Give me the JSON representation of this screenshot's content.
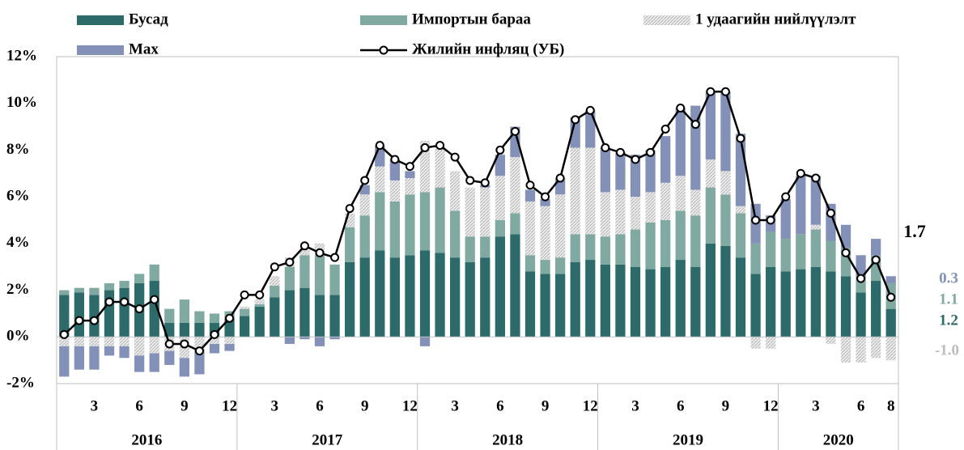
{
  "chart_data": {
    "type": "bar",
    "stacked": true,
    "categories": [
      null,
      null,
      "3",
      null,
      null,
      "6",
      null,
      null,
      "9",
      null,
      null,
      "12",
      null,
      null,
      "3",
      null,
      null,
      "6",
      null,
      null,
      "9",
      null,
      null,
      "12",
      null,
      null,
      "3",
      null,
      null,
      "6",
      null,
      null,
      "9",
      null,
      null,
      "12",
      null,
      null,
      "3",
      null,
      null,
      "6",
      null,
      null,
      "9",
      null,
      null,
      "12",
      null,
      null,
      "3",
      null,
      null,
      "6",
      null,
      "8"
    ],
    "years": [
      "2016",
      "2017",
      "2018",
      "2019",
      "2020"
    ],
    "ylim": [
      -2,
      12
    ],
    "yticks": [
      {
        "value": -2,
        "label": "-2%"
      },
      {
        "value": 0,
        "label": "0%"
      },
      {
        "value": 2,
        "label": "2%"
      },
      {
        "value": 4,
        "label": "4%"
      },
      {
        "value": 6,
        "label": "6%"
      },
      {
        "value": 8,
        "label": "8%"
      },
      {
        "value": 10,
        "label": "10%"
      },
      {
        "value": 12,
        "label": "12%"
      }
    ],
    "grid": false,
    "series": [
      {
        "name": "Бусад",
        "color": "#2d6a6a",
        "values": [
          1.8,
          1.9,
          1.8,
          2.0,
          2.1,
          2.3,
          2.4,
          0.6,
          0.6,
          0.6,
          0.6,
          0.8,
          0.9,
          1.3,
          1.7,
          2.0,
          2.1,
          1.8,
          1.8,
          3.2,
          3.4,
          3.7,
          3.4,
          3.5,
          3.7,
          3.6,
          3.4,
          3.2,
          3.4,
          4.3,
          4.4,
          2.8,
          2.7,
          2.7,
          3.2,
          3.3,
          3.1,
          3.1,
          3.0,
          2.9,
          3.0,
          3.3,
          3.0,
          4.0,
          3.9,
          3.4,
          2.7,
          3.0,
          2.8,
          2.9,
          3.0,
          2.8,
          2.6,
          1.9,
          2.4,
          1.2
        ]
      },
      {
        "name": "Импортын бараа",
        "color": "#80a9a1",
        "values": [
          0.2,
          0.2,
          0.3,
          0.3,
          0.3,
          0.4,
          0.7,
          0.6,
          1.0,
          0.5,
          0.4,
          0.3,
          0.3,
          0.1,
          0.5,
          1.0,
          1.4,
          1.7,
          1.3,
          1.5,
          1.8,
          2.5,
          2.4,
          2.6,
          2.5,
          2.8,
          2.0,
          1.1,
          0.9,
          0.7,
          0.9,
          0.7,
          0.6,
          0.7,
          1.2,
          1.1,
          1.2,
          1.3,
          1.6,
          2.0,
          2.0,
          2.1,
          2.2,
          2.4,
          2.2,
          1.9,
          1.3,
          1.5,
          1.4,
          1.5,
          1.6,
          1.3,
          1.2,
          0.6,
          1.1,
          1.1
        ]
      },
      {
        "name": "1 удаагийн нийлүүлэлт",
        "color": "#cfcfcf",
        "values": [
          -0.4,
          -0.4,
          -0.4,
          -0.4,
          -0.4,
          -0.8,
          -0.7,
          -0.6,
          -0.9,
          -0.5,
          -0.3,
          -0.3,
          0.1,
          0.2,
          0.4,
          0.4,
          0.3,
          0.5,
          0.0,
          0.6,
          0.9,
          1.1,
          0.9,
          0.7,
          2.2,
          1.8,
          1.7,
          2.1,
          2.1,
          1.9,
          2.4,
          2.3,
          2.3,
          2.7,
          3.7,
          3.7,
          1.9,
          1.9,
          1.4,
          1.3,
          1.6,
          1.5,
          1.1,
          1.2,
          1.0,
          0.3,
          -0.5,
          -0.5,
          0.0,
          0.0,
          0.2,
          -0.3,
          -1.1,
          -1.1,
          -0.9,
          -1.0
        ],
        "value_labels": [
          null,
          null,
          null,
          null,
          null,
          null,
          null,
          null,
          null,
          null,
          null,
          null,
          null,
          null,
          null,
          null,
          null,
          null,
          null,
          null,
          null,
          null,
          null,
          null,
          null,
          null,
          null,
          null,
          null,
          null,
          null,
          null,
          null,
          null,
          null,
          null,
          null,
          null,
          null,
          null,
          null,
          null,
          null,
          null,
          null,
          null,
          null,
          null,
          null,
          null,
          null,
          null,
          null,
          null,
          null,
          "-1.0"
        ]
      },
      {
        "name": "Мах",
        "color": "#8391b8",
        "values": [
          -1.3,
          -1.0,
          -1.0,
          -0.4,
          -0.5,
          -0.7,
          -0.8,
          -0.6,
          -0.8,
          -1.1,
          -0.4,
          -0.3,
          0.0,
          0.0,
          0.0,
          -0.3,
          -0.1,
          -0.4,
          -0.1,
          0.0,
          0.4,
          0.9,
          0.9,
          0.3,
          -0.4,
          0.0,
          0.0,
          0.0,
          0.1,
          0.9,
          1.3,
          0.5,
          0.3,
          0.7,
          1.3,
          1.6,
          1.9,
          1.6,
          1.8,
          1.8,
          2.0,
          2.9,
          3.6,
          2.9,
          3.4,
          3.1,
          1.7,
          0.7,
          1.7,
          2.5,
          2.1,
          1.6,
          1.0,
          1.0,
          0.7,
          0.3
        ]
      },
      {
        "name": "Жилийн инфляц (УБ)",
        "type": "line",
        "color": "#000000",
        "values": [
          0.1,
          0.7,
          0.7,
          1.5,
          1.5,
          1.2,
          1.6,
          -0.3,
          -0.3,
          -0.6,
          0.1,
          0.8,
          1.8,
          1.8,
          3.0,
          3.2,
          3.9,
          3.6,
          3.4,
          5.5,
          6.7,
          8.2,
          7.6,
          7.3,
          8.1,
          8.2,
          7.7,
          6.7,
          6.6,
          8.0,
          8.8,
          6.5,
          6.0,
          6.8,
          9.3,
          9.7,
          8.1,
          7.9,
          7.6,
          7.9,
          8.9,
          9.8,
          9.1,
          10.5,
          10.5,
          8.5,
          5.0,
          5.0,
          6.0,
          7.0,
          6.8,
          5.3,
          3.6,
          2.5,
          3.3,
          1.7
        ]
      }
    ]
  }
}
